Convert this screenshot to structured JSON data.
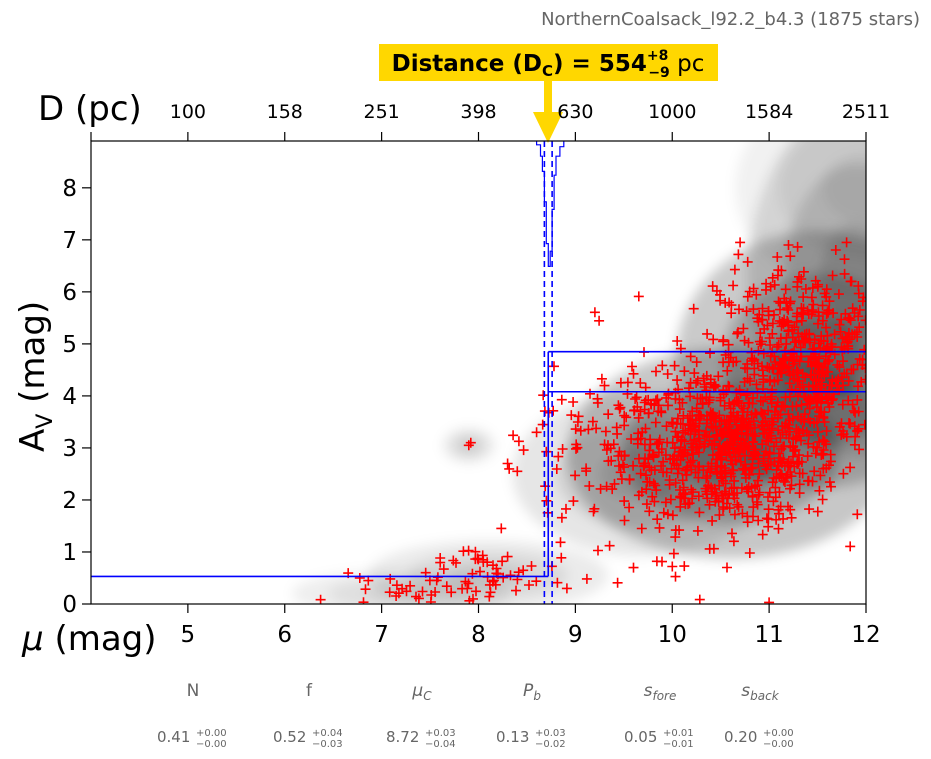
{
  "chart_data": {
    "type": "scatter",
    "figure_title": "NorthernCoalsack_l92.2_b4.3 (1875 stars)",
    "distance_banner": {
      "label": "Distance (D",
      "label_sub": "C",
      "label_end": ") = 554",
      "upper": "+8",
      "lower": "−9",
      "unit": " pc"
    },
    "top_axis": {
      "label": "D (pc)",
      "ticks": [
        100,
        158,
        251,
        398,
        630,
        1000,
        1584,
        2511
      ],
      "tick_positions_mu": [
        5,
        6,
        7,
        8,
        9,
        10,
        11,
        12
      ]
    },
    "xlabel_prefix": "μ",
    "xlabel_suffix": " (mag)",
    "ylabel_main": "A",
    "ylabel_sub": "V",
    "ylabel_end": " (mag)",
    "xlim": [
      4,
      12
    ],
    "ylim": [
      0,
      8.9
    ],
    "xticks": [
      5,
      6,
      7,
      8,
      9,
      10,
      11,
      12
    ],
    "yticks": [
      0,
      1,
      2,
      3,
      4,
      5,
      6,
      7,
      8
    ],
    "model": {
      "mu_cloud": 8.72,
      "mu_cloud_bounds": [
        8.68,
        8.76
      ],
      "foreground_av": 0.53,
      "background_av_levels": [
        4.08,
        4.85
      ]
    },
    "posterior_histogram": {
      "x": [
        8.6,
        8.64,
        8.66,
        8.68,
        8.7,
        8.72,
        8.74,
        8.76,
        8.78,
        8.8,
        8.84,
        8.88
      ],
      "depth": [
        0.1,
        0.4,
        0.8,
        1.6,
        2.7,
        3.3,
        2.9,
        1.8,
        0.9,
        0.4,
        0.15,
        0.05
      ]
    },
    "density_blobs": [
      {
        "mu": 10.6,
        "av": 2.9,
        "smu": 0.75,
        "sav": 0.9,
        "w": 1.0
      },
      {
        "mu": 11.5,
        "av": 4.7,
        "smu": 0.65,
        "sav": 1.1,
        "w": 0.95
      },
      {
        "mu": 11.9,
        "av": 6.2,
        "smu": 0.5,
        "sav": 1.5,
        "w": 0.55
      },
      {
        "mu": 9.7,
        "av": 2.5,
        "smu": 0.6,
        "sav": 0.7,
        "w": 0.45
      },
      {
        "mu": 7.9,
        "av": 3.05,
        "smu": 0.12,
        "sav": 0.15,
        "w": 0.35
      },
      {
        "mu": 8.1,
        "av": 0.55,
        "smu": 0.55,
        "sav": 0.3,
        "w": 0.35
      },
      {
        "mu": 7.2,
        "av": 0.2,
        "smu": 0.5,
        "sav": 0.2,
        "w": 0.3
      },
      {
        "mu": 12.0,
        "av": 8.0,
        "smu": 0.6,
        "sav": 0.9,
        "w": 0.25
      }
    ],
    "star_groups": [
      {
        "mu": 10.6,
        "av": 2.9,
        "smu": 0.55,
        "sav": 0.7,
        "n": 620
      },
      {
        "mu": 11.4,
        "av": 4.7,
        "smu": 0.45,
        "sav": 0.9,
        "n": 520
      },
      {
        "mu": 9.9,
        "av": 3.2,
        "smu": 0.6,
        "sav": 1.0,
        "n": 160
      },
      {
        "mu": 8.1,
        "av": 0.55,
        "smu": 0.45,
        "sav": 0.35,
        "n": 60
      },
      {
        "mu": 7.1,
        "av": 0.22,
        "smu": 0.3,
        "sav": 0.15,
        "n": 20
      },
      {
        "mu": 8.85,
        "av": 3.0,
        "smu": 0.15,
        "sav": 0.6,
        "n": 20
      }
    ],
    "labeled_stars": [
      {
        "mu": 7.9,
        "av": 3.05
      },
      {
        "mu": 7.92,
        "av": 3.1
      },
      {
        "mu": 8.3,
        "av": 2.7
      },
      {
        "mu": 8.4,
        "av": 2.55
      },
      {
        "mu": 8.6,
        "av": 3.3
      },
      {
        "mu": 9.6,
        "av": 0.7
      },
      {
        "mu": 10.0,
        "av": 0.72
      },
      {
        "mu": 10.8,
        "av": 0.98
      },
      {
        "mu": 11.0,
        "av": 0.03
      },
      {
        "mu": 10.7,
        "av": 6.95
      },
      {
        "mu": 11.2,
        "av": 6.9
      },
      {
        "mu": 11.8,
        "av": 6.95
      }
    ],
    "parameters": [
      {
        "name": "N",
        "value": "0.41",
        "upper": "+0.00",
        "lower": "−0.00",
        "italic": false
      },
      {
        "name": "f",
        "value": "0.52",
        "upper": "+0.04",
        "lower": "−0.03",
        "italic": false
      },
      {
        "name": "μ",
        "sub": "C",
        "value": "8.72",
        "upper": "+0.03",
        "lower": "−0.04",
        "italic": true
      },
      {
        "name": "P",
        "sub": "b",
        "value": "0.13",
        "upper": "+0.03",
        "lower": "−0.02",
        "italic": true
      },
      {
        "name": "s",
        "sub": "fore",
        "value": "0.05",
        "upper": "+0.01",
        "lower": "−0.01",
        "italic": true
      },
      {
        "name": "s",
        "sub": "back",
        "value": "0.20",
        "upper": "+0.00",
        "lower": "−0.00",
        "italic": true
      }
    ]
  },
  "colors": {
    "star_marker": "#ff0000",
    "model_lines": "#0000ff",
    "banner_bg": "#ffd700",
    "param_text": "#666666",
    "title_text": "#666666",
    "arrow": "#ffd700"
  }
}
